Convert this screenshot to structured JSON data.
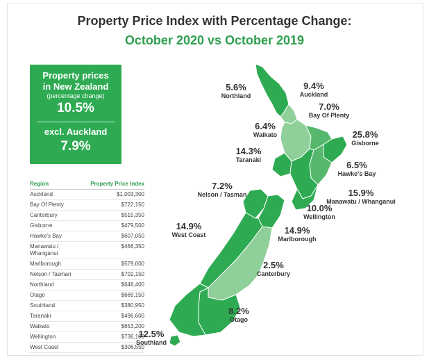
{
  "header": {
    "title": "Property Price Index with Percentage Change:",
    "subtitle": "October 2020 vs October 2019"
  },
  "summary": {
    "line1": "Property prices",
    "line2": "in New Zealand",
    "line3": "(percentage change)",
    "nz_value": "10.5%",
    "excl_label": "excl. Auckland",
    "excl_value": "7.9%"
  },
  "colors": {
    "accent": "#2eab52",
    "dark_green": "#2e9e4f",
    "mid_green": "#56b86c",
    "light_green": "#8fcf9a"
  },
  "chart_data": {
    "type": "table",
    "columns": [
      "Region",
      "Property Price Index"
    ],
    "rows": [
      [
        "Auckland",
        "$1,003,300"
      ],
      [
        "Bay Of Plenty",
        "$722,150"
      ],
      [
        "Canterbury",
        "$515,350"
      ],
      [
        "Gisborne",
        "$479,500"
      ],
      [
        "Hawke's Bay",
        "$607,050"
      ],
      [
        "Manawatu / Whanganui",
        "$466,350"
      ],
      [
        "Marlborough",
        "$579,000"
      ],
      [
        "Nelson / Tasman",
        "$702,150"
      ],
      [
        "Northland",
        "$648,400"
      ],
      [
        "Otago",
        "$669,150"
      ],
      [
        "Southland",
        "$380,950"
      ],
      [
        "Taranaki",
        "$496,600"
      ],
      [
        "Waikato",
        "$653,200"
      ],
      [
        "Wellington",
        "$736,100"
      ],
      [
        "West Coast",
        "$306,550"
      ]
    ],
    "map_labels": [
      {
        "region": "Northland",
        "change": "5.6%"
      },
      {
        "region": "Auckland",
        "change": "9.4%"
      },
      {
        "region": "Bay Of Plenty",
        "change": "7.0%"
      },
      {
        "region": "Waikato",
        "change": "6.4%"
      },
      {
        "region": "Gisborne",
        "change": "25.8%"
      },
      {
        "region": "Taranaki",
        "change": "14.3%"
      },
      {
        "region": "Hawke's Bay",
        "change": "6.5%"
      },
      {
        "region": "Nelson / Tasman",
        "change": "7.2%"
      },
      {
        "region": "Manawatu / Whanganui",
        "change": "15.9%"
      },
      {
        "region": "Wellington",
        "change": "10.0%"
      },
      {
        "region": "West Coast",
        "change": "14.9%"
      },
      {
        "region": "Marlborough",
        "change": "14.9%"
      },
      {
        "region": "Canterbury",
        "change": "2.5%"
      },
      {
        "region": "Otago",
        "change": "8.2%"
      },
      {
        "region": "Southland",
        "change": "12.5%"
      }
    ]
  }
}
